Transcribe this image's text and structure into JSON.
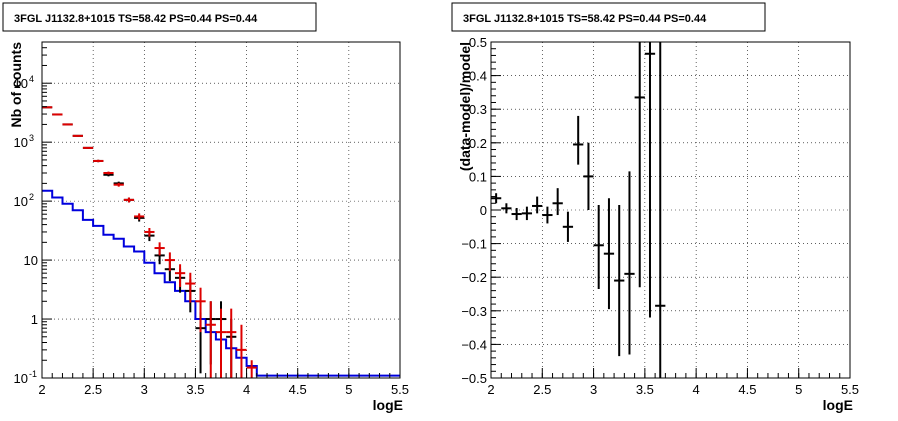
{
  "chart_data": [
    {
      "type": "histogram",
      "title": "3FGL J1132.8+1015 TS=58.42 PS=0.44 PS=0.44",
      "xlabel": "logE",
      "ylabel": "Nb of counts",
      "xlim": [
        2,
        5.5
      ],
      "ylim": [
        0.1,
        50000
      ],
      "log_y": true,
      "grid": true,
      "x_ticks": [
        "2",
        "2.5",
        "3",
        "3.5",
        "4",
        "4.5",
        "5",
        "5.5"
      ],
      "y_ticks": [
        {
          "v": 0.1,
          "base": "10",
          "exp": "-1"
        },
        {
          "v": 1,
          "base": "1",
          "exp": ""
        },
        {
          "v": 10,
          "base": "10",
          "exp": ""
        },
        {
          "v": 100,
          "base": "10",
          "exp": "2"
        },
        {
          "v": 1000,
          "base": "10",
          "exp": "3"
        },
        {
          "v": 10000,
          "base": "10",
          "exp": "4"
        }
      ],
      "series": [
        {
          "color": "#000000",
          "style": "errorbar",
          "x": [
            2.05,
            2.15,
            2.25,
            2.35,
            2.45,
            2.55,
            2.65,
            2.75,
            2.85,
            2.95,
            3.05,
            3.15,
            3.25,
            3.35,
            3.45,
            3.55,
            3.65,
            3.75,
            3.85
          ],
          "y": [
            3900,
            2950,
            2000,
            1280,
            800,
            480,
            280,
            200,
            105,
            52,
            26,
            12,
            7,
            5,
            3,
            0.7,
            1,
            1,
            0.5
          ],
          "lo": [
            3835,
            2890,
            1955,
            1245,
            772,
            458,
            263,
            186,
            95,
            45,
            21,
            8.5,
            4.4,
            2.8,
            1.3,
            0.12,
            0.17,
            0.17,
            0.08
          ],
          "hi": [
            3965,
            3010,
            2045,
            1315,
            828,
            502,
            297,
            214,
            115,
            59,
            31,
            15.5,
            9.6,
            7.2,
            4.7,
            1.3,
            2,
            2,
            1
          ]
        },
        {
          "color": "#dd0000",
          "style": "errorbar",
          "x": [
            2.05,
            2.15,
            2.25,
            2.35,
            2.45,
            2.55,
            2.65,
            2.75,
            2.85,
            2.95,
            3.05,
            3.15,
            3.25,
            3.35,
            3.45,
            3.55,
            3.65,
            3.75,
            3.85,
            3.95,
            4.05
          ],
          "y": [
            3900,
            2950,
            2000,
            1280,
            800,
            480,
            300,
            190,
            105,
            55,
            30,
            16,
            10,
            6,
            4,
            2,
            0.8,
            0.6,
            0.6,
            0.3,
            0.15
          ],
          "lo": [
            3835,
            2890,
            1955,
            1245,
            772,
            458,
            283,
            176,
            95,
            48,
            25,
            12,
            6.5,
            3.5,
            1.9,
            0.6,
            0.1,
            0.1,
            0.1,
            0.1,
            0.1
          ],
          "hi": [
            3965,
            3010,
            2045,
            1315,
            828,
            502,
            317,
            204,
            115,
            62,
            35,
            20,
            13.5,
            8.5,
            6.1,
            3.4,
            2,
            1.5,
            1.5,
            0.8,
            0.2
          ]
        },
        {
          "color": "#0000dd",
          "style": "step",
          "edges": [
            2.0,
            2.1,
            2.2,
            2.3,
            2.4,
            2.5,
            2.6,
            2.7,
            2.8,
            2.9,
            3.0,
            3.1,
            3.2,
            3.3,
            3.4,
            3.5,
            3.6,
            3.7,
            3.8,
            3.9,
            4.0,
            4.1,
            5.5
          ],
          "values": [
            150,
            115,
            90,
            70,
            48,
            38,
            27,
            23,
            17,
            14,
            9,
            6,
            4.2,
            3,
            2,
            1,
            0.6,
            0.45,
            0.32,
            0.22,
            0.16,
            0.11
          ]
        }
      ]
    },
    {
      "type": "scatter",
      "title": "3FGL J1132.8+1015 TS=58.42 PS=0.44 PS=0.44",
      "xlabel": "logE",
      "ylabel": "(data-model)/model",
      "xlim": [
        2,
        5.5
      ],
      "ylim": [
        -0.5,
        0.5
      ],
      "grid": true,
      "x_ticks": [
        "2",
        "2.5",
        "3",
        "3.5",
        "4",
        "4.5",
        "5",
        "5.5"
      ],
      "y_ticks": [
        "−0.5",
        "−0.4",
        "−0.3",
        "−0.2",
        "−0.1",
        "0",
        "0.1",
        "0.2",
        "0.3",
        "0.4",
        "0.5"
      ],
      "series": [
        {
          "color": "#000000",
          "style": "errorbar",
          "x": [
            2.05,
            2.15,
            2.25,
            2.35,
            2.45,
            2.55,
            2.65,
            2.75,
            2.85,
            2.95,
            3.05,
            3.15,
            3.25,
            3.35,
            3.45,
            3.55,
            3.65
          ],
          "y": [
            0.035,
            0.005,
            -0.012,
            -0.01,
            0.012,
            -0.015,
            0.02,
            -0.05,
            0.195,
            0.1,
            -0.105,
            -0.13,
            -0.21,
            -0.19,
            0.335,
            0.465,
            -0.285
          ],
          "lo": [
            0.02,
            -0.01,
            -0.03,
            -0.03,
            -0.01,
            -0.04,
            -0.015,
            -0.095,
            0.135,
            0.0,
            -0.235,
            -0.295,
            -0.435,
            -0.43,
            -0.23,
            -0.32,
            -0.5
          ],
          "hi": [
            0.05,
            0.02,
            0.006,
            0.01,
            0.04,
            0.01,
            0.065,
            -0.005,
            0.28,
            0.2,
            0.015,
            0.035,
            0.015,
            0.115,
            0.5,
            0.5,
            0.5
          ]
        }
      ]
    }
  ]
}
